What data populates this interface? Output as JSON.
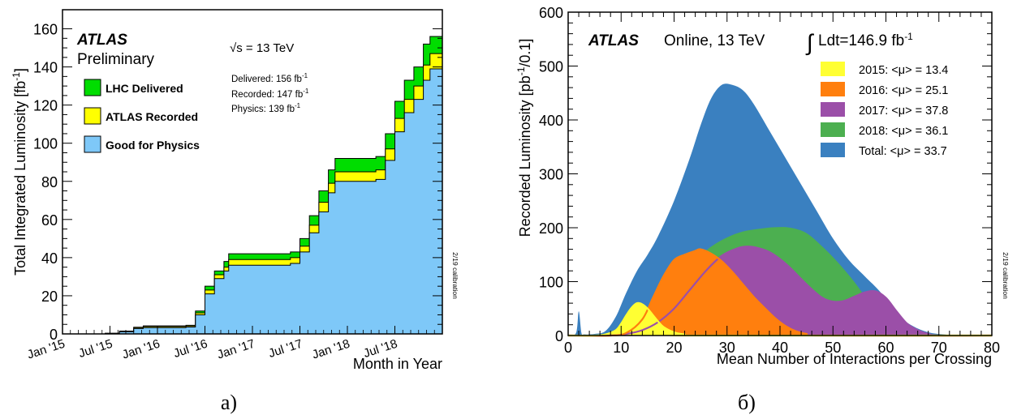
{
  "chart_data": [
    {
      "type": "area",
      "panel_caption": "а)",
      "title_bold": "ATLAS",
      "title_sub": "Preliminary",
      "energy_label": "√s = 13 TeV",
      "ylabel": "Total Integrated Luminosity [fb",
      "ylabel_sup": "-1",
      "ylabel_end": "]",
      "xlabel": "Month in Year",
      "side_note": "2/19 calibration",
      "ylim": [
        0,
        170
      ],
      "yticks": [
        0,
        20,
        40,
        60,
        80,
        100,
        120,
        140,
        160
      ],
      "xticks": [
        "Jan '15",
        "Jul '15",
        "Jan '16",
        "Jul '16",
        "Jan '17",
        "Jul '17",
        "Jan '18",
        "Jul '18"
      ],
      "totals": [
        {
          "label": "Delivered: 156 fb",
          "sup": "-1"
        },
        {
          "label": "Recorded: 147 fb",
          "sup": "-1"
        },
        {
          "label": "Physics: 139 fb",
          "sup": "-1"
        }
      ],
      "series": [
        {
          "name": "LHC Delivered",
          "color": "#00dd00",
          "x": [
            2015.25,
            2015.45,
            2015.6,
            2015.75,
            2015.85,
            2016.0,
            2016.3,
            2016.4,
            2016.5,
            2016.6,
            2016.7,
            2016.75,
            2016.83,
            2017.0,
            2017.4,
            2017.5,
            2017.6,
            2017.7,
            2017.8,
            2017.87,
            2018.0,
            2018.3,
            2018.4,
            2018.5,
            2018.6,
            2018.7,
            2018.8,
            2018.87,
            2019.0
          ],
          "y": [
            0,
            0.3,
            1.5,
            3.5,
            4.2,
            4.2,
            4.5,
            12,
            25,
            33,
            38,
            42,
            42,
            42,
            43,
            50,
            62,
            75,
            86,
            92,
            92,
            93,
            105,
            122,
            133,
            140,
            152,
            156,
            156
          ]
        },
        {
          "name": "ATLAS Recorded",
          "color": "#ffff00",
          "x": [
            2015.25,
            2015.45,
            2015.6,
            2015.75,
            2015.85,
            2016.0,
            2016.3,
            2016.4,
            2016.5,
            2016.6,
            2016.7,
            2016.75,
            2016.83,
            2017.0,
            2017.4,
            2017.5,
            2017.6,
            2017.7,
            2017.8,
            2017.87,
            2018.0,
            2018.3,
            2018.4,
            2018.5,
            2018.6,
            2018.7,
            2018.8,
            2018.87,
            2019.0
          ],
          "y": [
            0,
            0.3,
            1.4,
            3.3,
            3.9,
            3.9,
            4.2,
            11,
            23,
            31,
            35,
            39,
            39,
            39,
            40,
            46,
            57,
            69,
            79,
            85,
            85,
            86,
            97,
            113,
            123,
            130,
            141,
            147,
            147
          ]
        },
        {
          "name": "Good for Physics",
          "color": "#7ec8f8",
          "x": [
            2015.25,
            2015.45,
            2015.6,
            2015.75,
            2015.85,
            2016.0,
            2016.3,
            2016.4,
            2016.5,
            2016.6,
            2016.7,
            2016.75,
            2016.83,
            2017.0,
            2017.4,
            2017.5,
            2017.6,
            2017.7,
            2017.8,
            2017.87,
            2018.0,
            2018.3,
            2018.4,
            2018.5,
            2018.6,
            2018.7,
            2018.8,
            2018.87,
            2019.0
          ],
          "y": [
            0,
            0.2,
            1.1,
            2.8,
            3.3,
            3.3,
            3.6,
            10,
            21,
            29,
            33,
            36,
            36,
            36,
            37,
            43,
            53,
            64,
            74,
            80,
            80,
            81,
            91,
            106,
            116,
            123,
            133,
            139,
            139
          ]
        }
      ]
    },
    {
      "type": "area",
      "panel_caption": "б)",
      "title_bold": "ATLAS",
      "title_rest": "Online, 13 TeV",
      "lumi_label": "Ldt=146.9 fb",
      "lumi_sup": "-1",
      "ylabel": "Recorded Luminosity [pb",
      "ylabel_sup": "-1",
      "ylabel_end": "/0.1]",
      "xlabel": "Mean Number of Interactions per Crossing",
      "side_note": "2/19 calibration",
      "xlim": [
        0,
        80
      ],
      "ylim": [
        0,
        600
      ],
      "xticks": [
        0,
        10,
        20,
        30,
        40,
        50,
        60,
        70,
        80
      ],
      "yticks": [
        0,
        100,
        200,
        300,
        400,
        500,
        600
      ],
      "series": [
        {
          "name": "Total: <μ> = 33.7",
          "color": "#3a80c0",
          "fill": true,
          "x": [
            0,
            1.5,
            2,
            2.5,
            3,
            5,
            7,
            9,
            11,
            13,
            15,
            17,
            20,
            23,
            25,
            27,
            29,
            31,
            33,
            35,
            38,
            41,
            44,
            47,
            50,
            53,
            56,
            59,
            62,
            65,
            68,
            71,
            74,
            80
          ],
          "y": [
            0,
            5,
            45,
            5,
            2,
            3,
            8,
            35,
            80,
            120,
            150,
            185,
            250,
            330,
            390,
            440,
            465,
            465,
            455,
            430,
            380,
            330,
            280,
            230,
            180,
            140,
            110,
            80,
            40,
            18,
            6,
            2,
            0,
            0
          ]
        },
        {
          "name": "2018: <μ> = 36.1",
          "color": "#4caf50",
          "fill": true,
          "x": [
            0,
            5,
            10,
            13,
            15,
            18,
            21,
            24,
            27,
            30,
            33,
            36,
            39,
            42,
            45,
            48,
            51,
            54,
            57,
            60,
            63,
            66,
            70,
            80
          ],
          "y": [
            0,
            0,
            3,
            10,
            28,
            65,
            110,
            140,
            165,
            182,
            193,
            198,
            201,
            200,
            190,
            165,
            135,
            100,
            60,
            28,
            10,
            3,
            0,
            0
          ]
        },
        {
          "name": "2017: <μ> = 37.8",
          "color": "#9b4fa8",
          "fill": true,
          "x": [
            0,
            8,
            11,
            14,
            17,
            20,
            23,
            26,
            29,
            32,
            34,
            36,
            38,
            40,
            42,
            44,
            46,
            48,
            50,
            52,
            54,
            56,
            58,
            60,
            62,
            64,
            66,
            68,
            70,
            80
          ],
          "y": [
            0,
            0,
            3,
            10,
            25,
            50,
            85,
            120,
            148,
            162,
            165,
            162,
            155,
            142,
            125,
            105,
            86,
            70,
            63,
            64,
            72,
            80,
            82,
            70,
            45,
            22,
            10,
            3,
            0,
            0
          ]
        },
        {
          "name": "2016: <μ> = 25.1",
          "color": "#ff7f0e",
          "fill": true,
          "x": [
            0,
            8,
            11,
            14,
            16,
            18,
            20,
            22,
            24,
            25,
            27,
            29,
            31,
            33,
            35,
            37,
            39,
            41,
            43,
            45,
            47,
            80
          ],
          "y": [
            0,
            0,
            5,
            30,
            70,
            110,
            140,
            150,
            157,
            160,
            152,
            138,
            118,
            95,
            72,
            52,
            33,
            18,
            8,
            3,
            0,
            0
          ]
        },
        {
          "name": "2015: <μ> = 13.4",
          "color": "#ffff33",
          "fill": true,
          "x": [
            0,
            5,
            7,
            9,
            10,
            11,
            12,
            13,
            14,
            15,
            16,
            17,
            18,
            20,
            22,
            24,
            80
          ],
          "y": [
            0,
            0,
            2,
            10,
            22,
            38,
            52,
            60,
            58,
            50,
            38,
            26,
            16,
            6,
            2,
            0,
            0
          ]
        }
      ]
    }
  ],
  "panel_a": {
    "caption": "а)"
  },
  "panel_b": {
    "caption": "б)"
  }
}
